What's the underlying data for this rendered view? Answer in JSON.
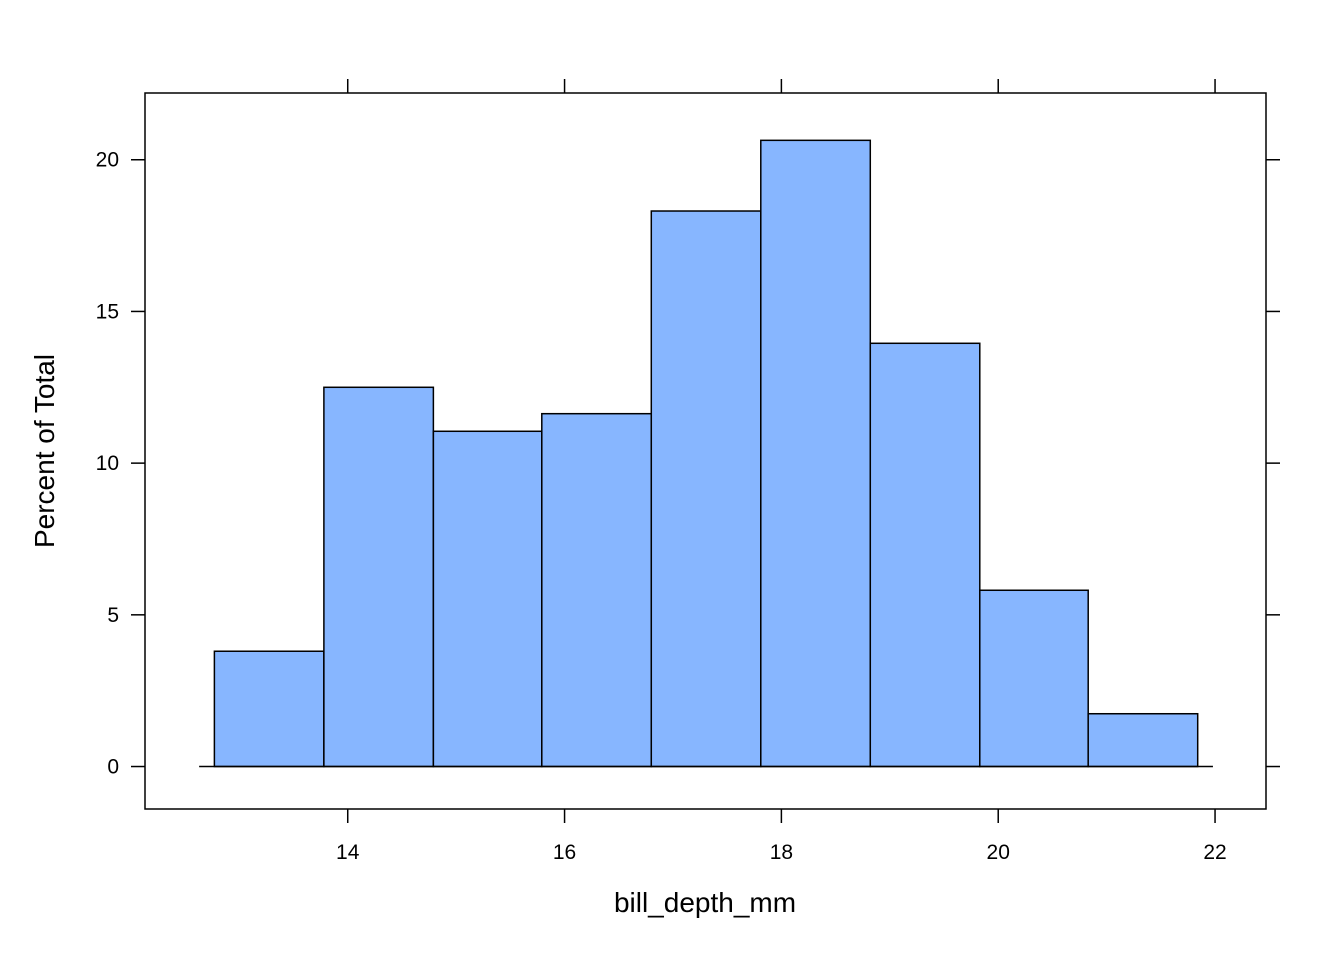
{
  "chart_data": {
    "type": "bar",
    "title": "",
    "xlabel": "bill_depth_mm",
    "ylabel": "Percent of Total",
    "bins": [
      {
        "x0": 12.77,
        "x1": 13.78,
        "value": 3.8
      },
      {
        "x0": 13.78,
        "x1": 14.79,
        "value": 12.5
      },
      {
        "x0": 14.79,
        "x1": 15.79,
        "value": 11.05
      },
      {
        "x0": 15.79,
        "x1": 16.8,
        "value": 11.63
      },
      {
        "x0": 16.8,
        "x1": 17.81,
        "value": 18.31
      },
      {
        "x0": 17.81,
        "x1": 18.82,
        "value": 20.64
      },
      {
        "x0": 18.82,
        "x1": 19.83,
        "value": 13.95
      },
      {
        "x0": 19.83,
        "x1": 20.83,
        "value": 5.81
      },
      {
        "x0": 20.83,
        "x1": 21.84,
        "value": 1.74
      }
    ],
    "xticks": [
      "14",
      "16",
      "18",
      "20",
      "22"
    ],
    "yticks": [
      "0",
      "5",
      "10",
      "15",
      "20"
    ],
    "xlim": [
      12.13,
      22.47
    ],
    "ylim": [
      -1.4,
      22.2
    ],
    "bar_color": "#87B6FF",
    "edge_color": "#000000",
    "grid": false,
    "legend": "none"
  }
}
